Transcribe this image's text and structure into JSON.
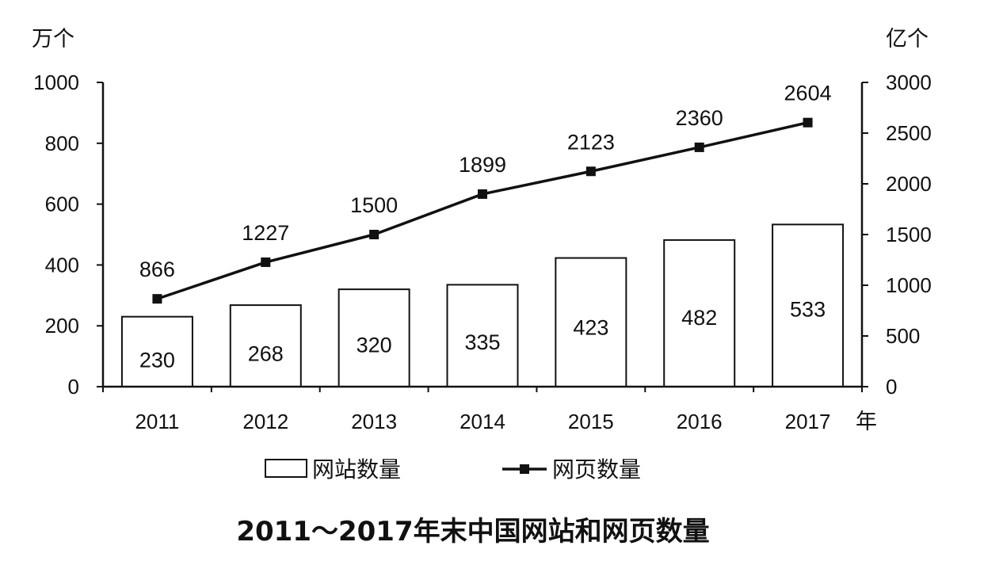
{
  "chart_data": {
    "type": "bar",
    "title": "2011～2017年末中国网站和网页数量",
    "x_unit": "年",
    "categories": [
      "2011",
      "2012",
      "2013",
      "2014",
      "2015",
      "2016",
      "2017"
    ],
    "y_left": {
      "unit": "万个",
      "ylim": [
        0,
        1000
      ],
      "ticks": [
        0,
        200,
        400,
        600,
        800,
        1000
      ]
    },
    "y_right": {
      "unit": "亿个",
      "ylim": [
        0,
        3000
      ],
      "ticks": [
        0,
        500,
        1000,
        1500,
        2000,
        2500,
        3000
      ]
    },
    "series": [
      {
        "name": "网站数量",
        "type": "bar",
        "axis": "left",
        "values": [
          230,
          268,
          320,
          335,
          423,
          482,
          533
        ]
      },
      {
        "name": "网页数量",
        "type": "line",
        "axis": "right",
        "marker": "square",
        "values": [
          866,
          1227,
          1500,
          1899,
          2123,
          2360,
          2604
        ]
      }
    ],
    "grid": false,
    "legend": "bottom"
  }
}
